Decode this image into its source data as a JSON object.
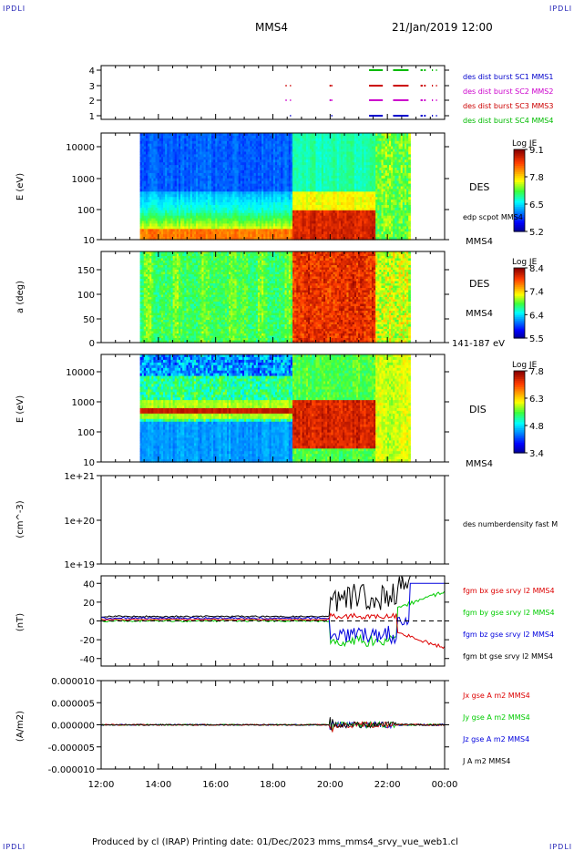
{
  "corners": {
    "tl": "IPDLI",
    "tr": "IPDLI",
    "bl": "IPDLI",
    "br": "IPDLI"
  },
  "header": {
    "spacecraft": "MMS4",
    "datetime": "21/Jan/2019 12:00"
  },
  "footer": "Produced by cl (IRAP)   Printing date: 01/Dec/2023   mms_mms4_srvy_vue_web1.cl",
  "time_axis": {
    "labels": [
      "12:00",
      "14:00",
      "16:00",
      "18:00",
      "20:00",
      "22:00",
      "00:00"
    ]
  },
  "chart_data": [
    {
      "type": "scatter",
      "panel": "burst availability",
      "yticks": [
        "1",
        "2",
        "3",
        "4"
      ],
      "legend": [
        {
          "name": "des dist burst SC1 MMS1",
          "color": "#0000cc"
        },
        {
          "name": "des dist burst SC2 MMS2",
          "color": "#cc00cc"
        },
        {
          "name": "des dist burst SC3 MMS3",
          "color": "#cc0000"
        },
        {
          "name": "des dist burst SC4 MMS4",
          "color": "#00bb00"
        }
      ]
    },
    {
      "type": "heatmap",
      "panel": "DES energy spectrogram",
      "ylabel": "E (eV)",
      "yticks": [
        "10",
        "100",
        "1000",
        "10000"
      ],
      "label": "DES",
      "overlay": "edp scpot MMS4",
      "spacecraft": "MMS4",
      "colorbar": {
        "title": "Log JE",
        "ticks": [
          "9.1",
          "7.8",
          "6.5",
          "5.2"
        ]
      }
    },
    {
      "type": "heatmap",
      "panel": "DES pitch angle",
      "ylabel": "a (deg)",
      "yticks": [
        "0",
        "50",
        "100",
        "150"
      ],
      "label": "DES",
      "spacecraft": "MMS4",
      "energy_range": "141-187 eV",
      "colorbar": {
        "title": "Log JE",
        "ticks": [
          "8.4",
          "7.4",
          "6.4",
          "5.5"
        ]
      }
    },
    {
      "type": "heatmap",
      "panel": "DIS energy spectrogram",
      "ylabel": "E (eV)",
      "yticks": [
        "10",
        "100",
        "1000",
        "10000"
      ],
      "label": "DIS",
      "spacecraft": "MMS4",
      "colorbar": {
        "title": "Log JE",
        "ticks": [
          "7.8",
          "6.3",
          "4.8",
          "3.4"
        ]
      }
    },
    {
      "type": "line",
      "panel": "density",
      "ylabel": "(cm^-3)",
      "yticks": [
        "1e+19",
        "1e+20",
        "1e+21"
      ],
      "legend": [
        {
          "name": "des numberdensity fast M",
          "color": "#000000"
        }
      ]
    },
    {
      "type": "line",
      "panel": "magnetic field",
      "ylabel": "(nT)",
      "yticks": [
        "-40",
        "-20",
        "0",
        "20",
        "40"
      ],
      "ylim": [
        -48,
        48
      ],
      "legend": [
        {
          "name": "fgm bx gse srvy l2 MMS4",
          "color": "#dd0000"
        },
        {
          "name": "fgm by gse srvy l2 MMS4",
          "color": "#00cc00"
        },
        {
          "name": "fgm bz gse srvy l2 MMS4",
          "color": "#0000dd"
        },
        {
          "name": "fgm bt gse srvy l2 MMS4",
          "color": "#000000"
        }
      ]
    },
    {
      "type": "line",
      "panel": "current density",
      "ylabel": "(A/m2)",
      "yticks": [
        "-0.000010",
        "-0.000005",
        "0.000000",
        "0.000005",
        "0.000010"
      ],
      "ylim": [
        -1e-05,
        1e-05
      ],
      "legend": [
        {
          "name": "Jx gse A m2 MMS4",
          "color": "#dd0000"
        },
        {
          "name": "Jy gse A m2 MMS4",
          "color": "#00cc00"
        },
        {
          "name": "Jz gse A m2 MMS4",
          "color": "#0000dd"
        },
        {
          "name": "J A m2 MMS4",
          "color": "#000000"
        }
      ]
    }
  ]
}
